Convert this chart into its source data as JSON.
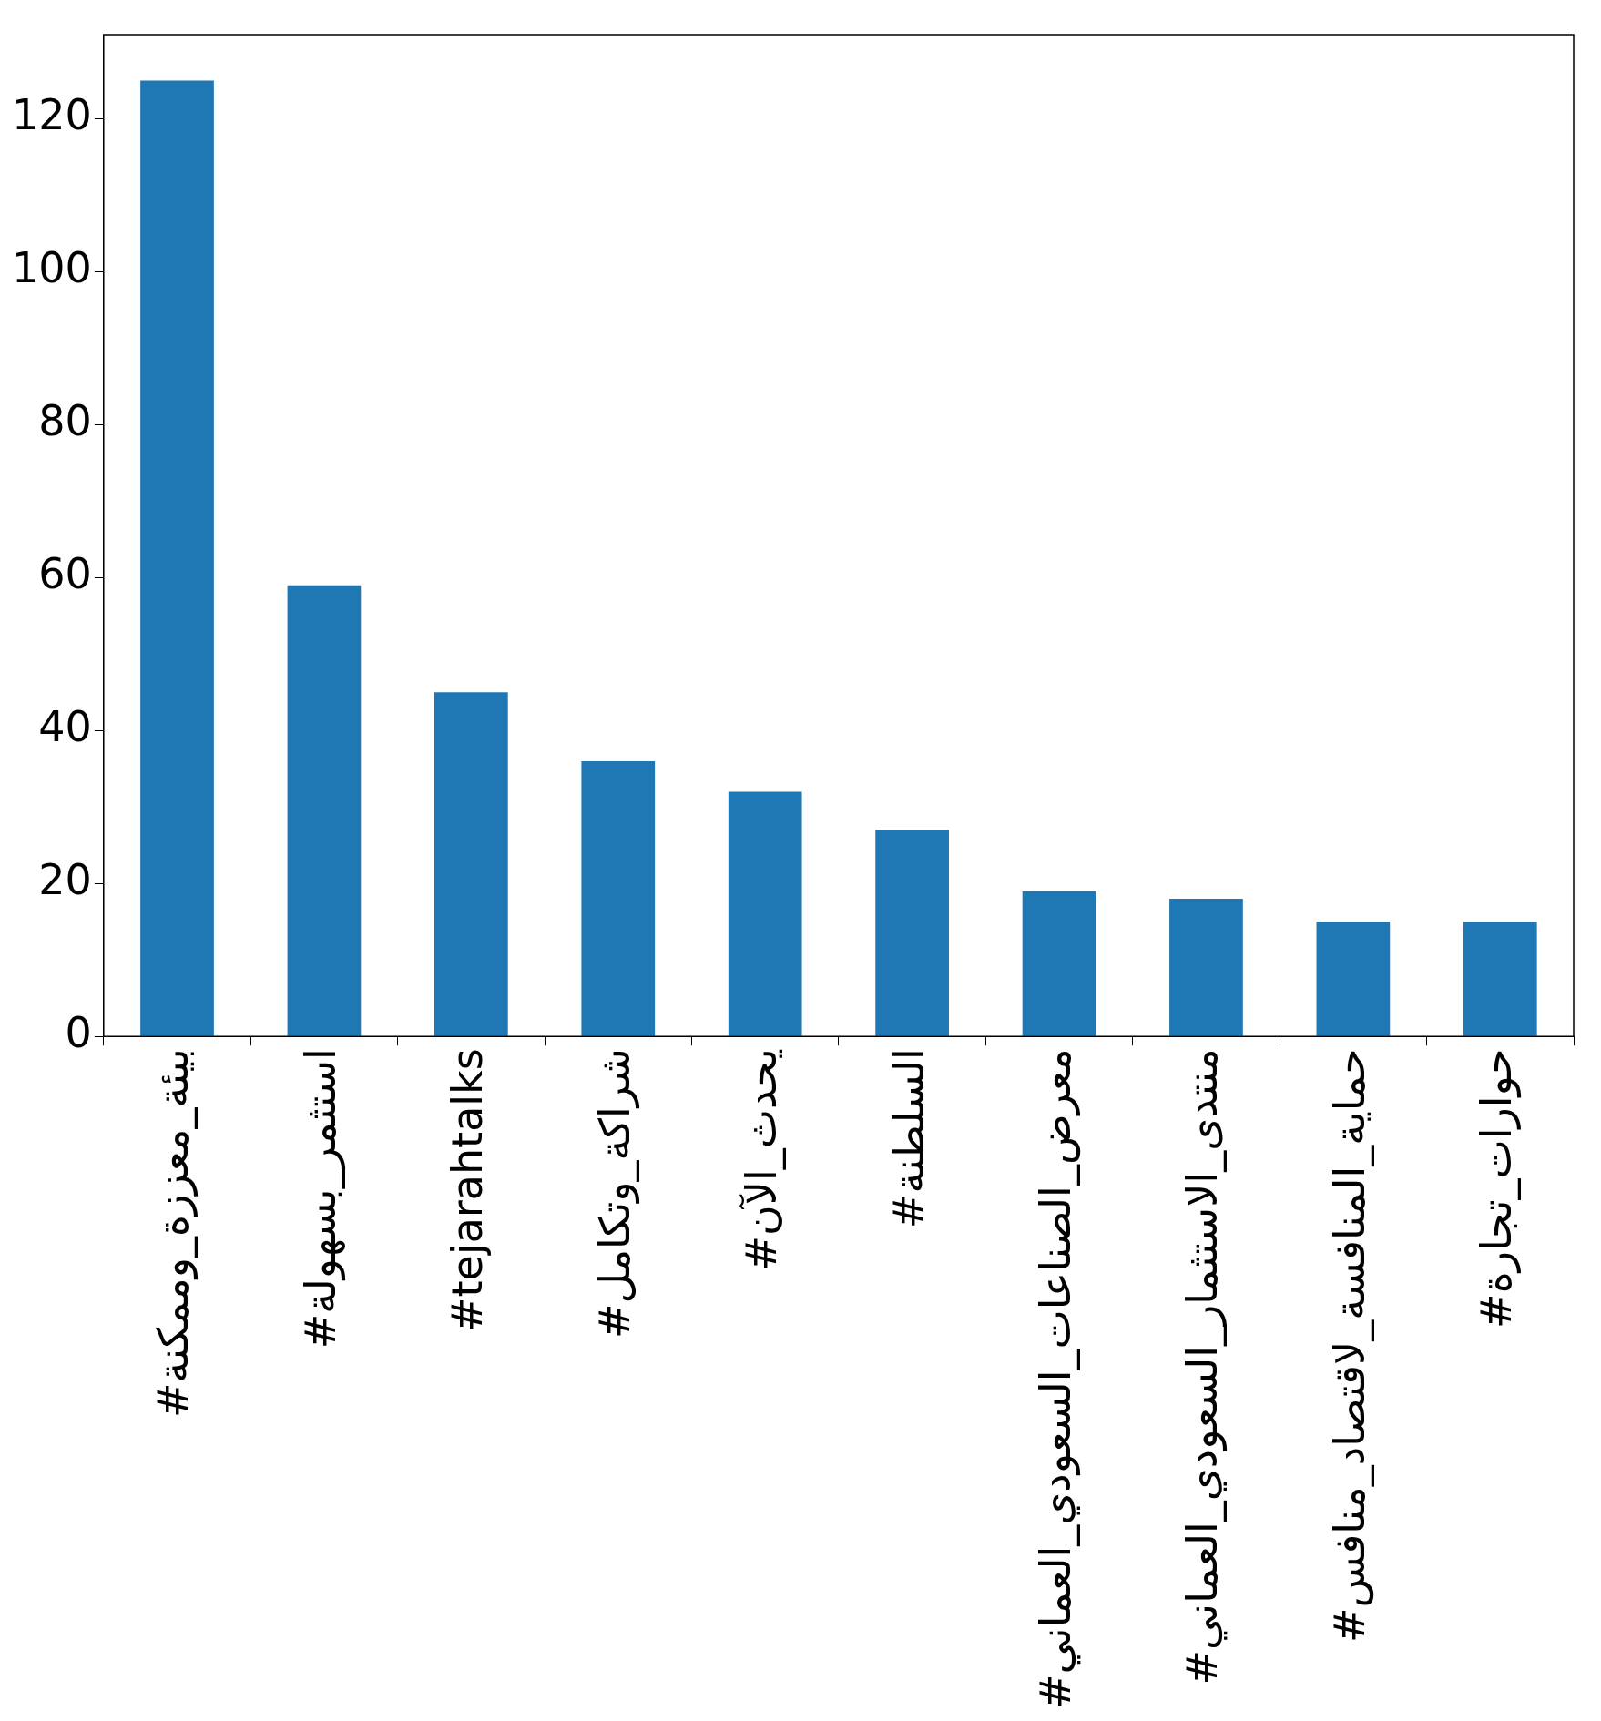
{
  "chart_data": {
    "type": "bar",
    "categories": [
      "#بيئة_معززة_وممكنة",
      "#استثمر_بسهولة",
      "#tejarahtalks",
      "#شراكة_وتكامل",
      "#يحدث_الآن",
      "#السلطنة",
      "#معرض_الصناعات_السعودي_العماني",
      "#منتدى_الاستثمار_السعودي_العماني",
      "#حماية_المنافسة_لاقتصاد_منافس",
      "#حوارات_تجارة"
    ],
    "values": [
      125,
      59,
      45,
      36,
      32,
      27,
      19,
      18,
      15,
      15
    ],
    "color": "#1f77b4",
    "ylim": [
      0,
      131
    ],
    "yticks": [
      0,
      20,
      40,
      60,
      80,
      100,
      120
    ],
    "grid": false,
    "legend": false
  }
}
